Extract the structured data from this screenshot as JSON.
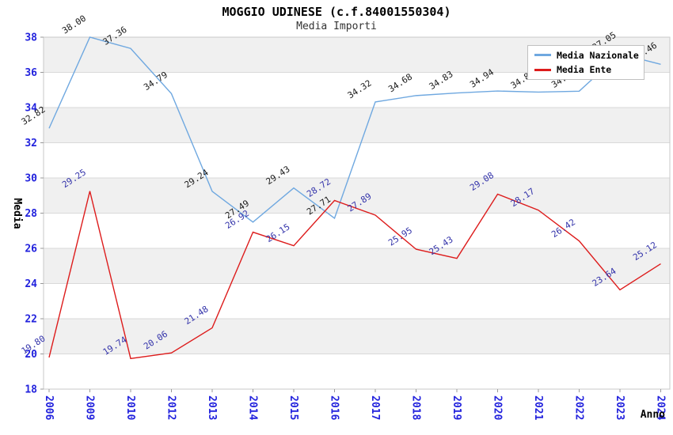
{
  "header": {
    "title": "MOGGIO UDINESE (c.f.84001550304)",
    "subtitle": "Media Importi"
  },
  "legend": {
    "position": "top-right",
    "items": [
      {
        "label": "Media Nazionale",
        "color": "#6fa8e0"
      },
      {
        "label": "Media Ente",
        "color": "#dd1c1c"
      }
    ]
  },
  "axes": {
    "y_title": "Media",
    "x_title": "Anno",
    "y_ticks": [
      18,
      20,
      22,
      24,
      26,
      28,
      30,
      32,
      34,
      36,
      38
    ],
    "tick_color": "#2222dd"
  },
  "chart_data": {
    "type": "line",
    "title": "MOGGIO UDINESE (c.f.84001550304)",
    "subtitle": "Media Importi",
    "xlabel": "Anno",
    "ylabel": "Media",
    "ylim": [
      18,
      38
    ],
    "grid": "horizontal gridlines every 2 units with alternating gray bands",
    "legend_position": "top-right",
    "categories": [
      "2006",
      "2009",
      "2010",
      "2012",
      "2013",
      "2014",
      "2015",
      "2016",
      "2017",
      "2018",
      "2019",
      "2020",
      "2021",
      "2022",
      "2023",
      "2024"
    ],
    "series": [
      {
        "name": "Media Nazionale",
        "color": "#6fa8e0",
        "label_color": "#1a1a1a",
        "values": [
          32.82,
          38.0,
          37.36,
          34.79,
          29.24,
          27.49,
          29.43,
          27.71,
          34.32,
          34.68,
          34.83,
          34.94,
          34.88,
          34.93,
          37.05,
          36.46
        ]
      },
      {
        "name": "Media Ente",
        "color": "#dd1c1c",
        "label_color": "#3333aa",
        "values": [
          19.8,
          29.25,
          19.74,
          20.06,
          21.48,
          26.92,
          26.15,
          28.72,
          27.89,
          25.95,
          25.43,
          29.08,
          28.17,
          26.42,
          23.64,
          25.12
        ]
      }
    ],
    "style": {
      "band_fill": "#f0f0f0",
      "gridline_color": "#d9d9d9",
      "border_color": "#c9c9c9",
      "tick_color": "#999999",
      "tick_label_color": "#2222dd",
      "axis_title_color": "#000000"
    }
  }
}
